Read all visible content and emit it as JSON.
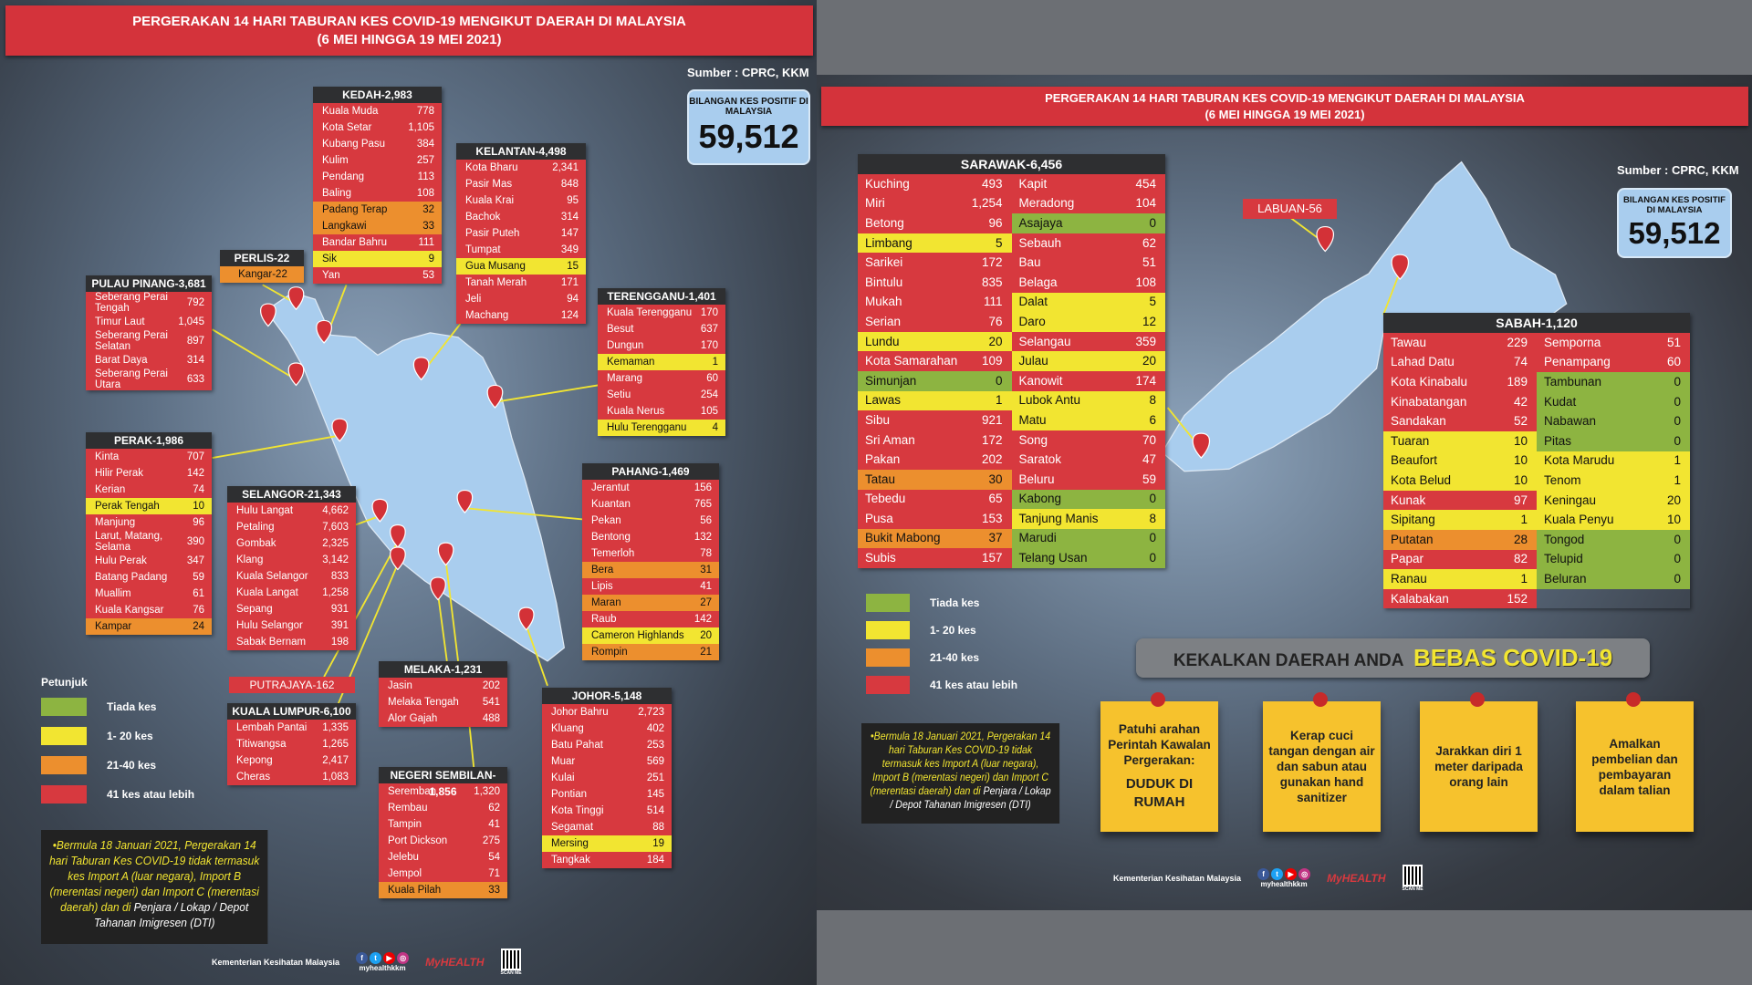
{
  "colors": {
    "tiada": "#8db441",
    "low": "#f2e531",
    "mid": "#ec8f2e",
    "high": "#d7393f",
    "header": "#d4333b",
    "map": "#a9cdee"
  },
  "title_line1": "PERGERAKAN 14 HARI TABURAN KES COVID-19 MENGIKUT DAERAH DI MALAYSIA",
  "title_line2": "(6 MEI HINGGA 19 MEI 2021)",
  "source": "Sumber : CPRC, KKM",
  "total_label": "BILANGAN KES POSITIF DI MALAYSIA",
  "total_value": "59,512",
  "legend": {
    "title": "Petunjuk",
    "items": [
      "Tiada kes",
      "1- 20 kes",
      "21-40 kes",
      "41 kes atau lebih"
    ]
  },
  "note": {
    "yellow": "•Bermula 18 Januari 2021, Pergerakan 14 hari Taburan Kes COVID-19 tidak termasuk kes Import A (luar negara), Import B (merentasi negeri) dan Import C (merentasi daerah) dan di",
    "white": "Penjara / Lokap / Depot Tahanan Imigresen (DTI)"
  },
  "footer": {
    "ministry": "Kementerian Kesihatan Malaysia",
    "handle": "myhealthkkm",
    "logo": "MyHEALTH",
    "qr": "SCAN ME"
  },
  "left": {
    "states": [
      {
        "title": "KEDAH-2,983",
        "rows": [
          [
            "Kuala Muda",
            "778"
          ],
          [
            "Kota Setar",
            "1,105"
          ],
          [
            "Kubang Pasu",
            "384"
          ],
          [
            "Kulim",
            "257"
          ],
          [
            "Pendang",
            "113"
          ],
          [
            "Baling",
            "108"
          ],
          [
            "Padang Terap",
            "32"
          ],
          [
            "Langkawi",
            "33"
          ],
          [
            "Bandar Bahru",
            "111"
          ],
          [
            "Sik",
            "9"
          ],
          [
            "Yan",
            "53"
          ]
        ]
      },
      {
        "title": "KELANTAN-4,498",
        "rows": [
          [
            "Kota Bharu",
            "2,341"
          ],
          [
            "Pasir Mas",
            "848"
          ],
          [
            "Kuala Krai",
            "95"
          ],
          [
            "Bachok",
            "314"
          ],
          [
            "Pasir Puteh",
            "147"
          ],
          [
            "Tumpat",
            "349"
          ],
          [
            "Gua Musang",
            "15"
          ],
          [
            "Tanah Merah",
            "171"
          ],
          [
            "Jeli",
            "94"
          ],
          [
            "Machang",
            "124"
          ]
        ]
      },
      {
        "title": "PERLIS-22",
        "rows": [
          [
            "Kangar-22",
            "22"
          ]
        ]
      },
      {
        "title": "PULAU PINANG-3,681",
        "rows": [
          [
            "Seberang Perai Tengah",
            "792"
          ],
          [
            "Timur Laut",
            "1,045"
          ],
          [
            "Seberang Perai Selatan",
            "897"
          ],
          [
            "Barat Daya",
            "314"
          ],
          [
            "Seberang Perai Utara",
            "633"
          ]
        ]
      },
      {
        "title": "TERENGGANU-1,401",
        "rows": [
          [
            "Kuala Terengganu",
            "170"
          ],
          [
            "Besut",
            "637"
          ],
          [
            "Dungun",
            "170"
          ],
          [
            "Kemaman",
            "1"
          ],
          [
            "Marang",
            "60"
          ],
          [
            "Setiu",
            "254"
          ],
          [
            "Kuala Nerus",
            "105"
          ],
          [
            "Hulu Terengganu",
            "4"
          ]
        ]
      },
      {
        "title": "PERAK-1,986",
        "rows": [
          [
            "Kinta",
            "707"
          ],
          [
            "Hilir Perak",
            "142"
          ],
          [
            "Kerian",
            "74"
          ],
          [
            "Perak Tengah",
            "10"
          ],
          [
            "Manjung",
            "96"
          ],
          [
            "Larut, Matang, Selama",
            "390"
          ],
          [
            "Hulu Perak",
            "347"
          ],
          [
            "Batang Padang",
            "59"
          ],
          [
            "Muallim",
            "61"
          ],
          [
            "Kuala Kangsar",
            "76"
          ],
          [
            "Kampar",
            "24"
          ]
        ]
      },
      {
        "title": "SELANGOR-21,343",
        "rows": [
          [
            "Hulu Langat",
            "4,662"
          ],
          [
            "Petaling",
            "7,603"
          ],
          [
            "Gombak",
            "2,325"
          ],
          [
            "Klang",
            "3,142"
          ],
          [
            "Kuala Selangor",
            "833"
          ],
          [
            "Kuala Langat",
            "1,258"
          ],
          [
            "Sepang",
            "931"
          ],
          [
            "Hulu Selangor",
            "391"
          ],
          [
            "Sabak Bernam",
            "198"
          ]
        ]
      },
      {
        "title": "PAHANG-1,469",
        "rows": [
          [
            "Jerantut",
            "156"
          ],
          [
            "Kuantan",
            "765"
          ],
          [
            "Pekan",
            "56"
          ],
          [
            "Bentong",
            "132"
          ],
          [
            "Temerloh",
            "78"
          ],
          [
            "Bera",
            "31"
          ],
          [
            "Lipis",
            "41"
          ],
          [
            "Maran",
            "27"
          ],
          [
            "Raub",
            "142"
          ],
          [
            "Cameron Highlands",
            "20"
          ],
          [
            "Rompin",
            "21"
          ]
        ]
      },
      {
        "title": "KUALA LUMPUR-6,100",
        "rows": [
          [
            "Lembah Pantai",
            "1,335"
          ],
          [
            "Titiwangsa",
            "1,265"
          ],
          [
            "Kepong",
            "2,417"
          ],
          [
            "Cheras",
            "1,083"
          ]
        ]
      },
      {
        "title": "MELAKA-1,231",
        "rows": [
          [
            "Jasin",
            "202"
          ],
          [
            "Melaka Tengah",
            "541"
          ],
          [
            "Alor Gajah",
            "488"
          ]
        ]
      },
      {
        "title": "NEGERI SEMBILAN-1,856",
        "rows": [
          [
            "Seremban",
            "1,320"
          ],
          [
            "Rembau",
            "62"
          ],
          [
            "Tampin",
            "41"
          ],
          [
            "Port Dickson",
            "275"
          ],
          [
            "Jelebu",
            "54"
          ],
          [
            "Jempol",
            "71"
          ],
          [
            "Kuala Pilah",
            "33"
          ]
        ]
      },
      {
        "title": "JOHOR-5,148",
        "rows": [
          [
            "Johor Bahru",
            "2,723"
          ],
          [
            "Kluang",
            "402"
          ],
          [
            "Batu Pahat",
            "253"
          ],
          [
            "Muar",
            "569"
          ],
          [
            "Kulai",
            "251"
          ],
          [
            "Pontian",
            "145"
          ],
          [
            "Kota Tinggi",
            "514"
          ],
          [
            "Segamat",
            "88"
          ],
          [
            "Mersing",
            "19"
          ],
          [
            "Tangkak",
            "184"
          ]
        ]
      }
    ],
    "putrajaya": "PUTRAJAYA-162"
  },
  "right": {
    "labuan": "LABUAN-56",
    "sarawak": {
      "title": "SARAWAK-6,456",
      "columns": [
        [
          [
            "Kuching",
            "493"
          ],
          [
            "Miri",
            "1,254"
          ],
          [
            "Betong",
            "96"
          ],
          [
            "Limbang",
            "5"
          ],
          [
            "Sarikei",
            "172"
          ],
          [
            "Bintulu",
            "835"
          ],
          [
            "Mukah",
            "111"
          ],
          [
            "Serian",
            "76"
          ],
          [
            "Lundu",
            "20"
          ],
          [
            "Kota Samarahan",
            "109"
          ],
          [
            "Simunjan",
            "0"
          ],
          [
            "Lawas",
            "1"
          ],
          [
            "Sibu",
            "921"
          ],
          [
            "Sri Aman",
            "172"
          ],
          [
            "Pakan",
            "202"
          ],
          [
            "Tatau",
            "30"
          ],
          [
            "Tebedu",
            "65"
          ],
          [
            "Pusa",
            "153"
          ],
          [
            "Bukit Mabong",
            "37"
          ],
          [
            "Subis",
            "157"
          ]
        ],
        [
          [
            "Kapit",
            "454"
          ],
          [
            "Meradong",
            "104"
          ],
          [
            "Asajaya",
            "0"
          ],
          [
            "Sebauh",
            "62"
          ],
          [
            "Bau",
            "51"
          ],
          [
            "Belaga",
            "108"
          ],
          [
            "Dalat",
            "5"
          ],
          [
            "Daro",
            "12"
          ],
          [
            "Selangau",
            "359"
          ],
          [
            "Julau",
            "20"
          ],
          [
            "Kanowit",
            "174"
          ],
          [
            "Lubok Antu",
            "8"
          ],
          [
            "Matu",
            "6"
          ],
          [
            "Song",
            "70"
          ],
          [
            "Saratok",
            "47"
          ],
          [
            "Beluru",
            "59"
          ],
          [
            "Kabong",
            "0"
          ],
          [
            "Tanjung Manis",
            "8"
          ],
          [
            "Marudi",
            "0"
          ],
          [
            "Telang Usan",
            "0"
          ]
        ]
      ]
    },
    "sabah": {
      "title": "SABAH-1,120",
      "columns": [
        [
          [
            "Tawau",
            "229"
          ],
          [
            "Lahad Datu",
            "74"
          ],
          [
            "Kota Kinabalu",
            "189"
          ],
          [
            "Kinabatangan",
            "42"
          ],
          [
            "Sandakan",
            "52"
          ],
          [
            "Tuaran",
            "10"
          ],
          [
            "Beaufort",
            "10"
          ],
          [
            "Kota Belud",
            "10"
          ],
          [
            "Kunak",
            "97"
          ],
          [
            "Sipitang",
            "1"
          ],
          [
            "Putatan",
            "28"
          ],
          [
            "Papar",
            "82"
          ],
          [
            "Ranau",
            "1"
          ],
          [
            "Kalabakan",
            "152"
          ]
        ],
        [
          [
            "Semporna",
            "51"
          ],
          [
            "Penampang",
            "60"
          ],
          [
            "Tambunan",
            "0"
          ],
          [
            "Kudat",
            "0"
          ],
          [
            "Nabawan",
            "0"
          ],
          [
            "Pitas",
            "0"
          ],
          [
            "Kota Marudu",
            "1"
          ],
          [
            "Tenom",
            "1"
          ],
          [
            "Keningau",
            "20"
          ],
          [
            "Kuala Penyu",
            "10"
          ],
          [
            "Tongod",
            "0"
          ],
          [
            "Telupid",
            "0"
          ],
          [
            "Beluran",
            "0"
          ]
        ]
      ]
    },
    "banner": {
      "text": "KEKALKAN DAERAH ANDA",
      "highlight": "BEBAS COVID-19"
    },
    "tips": [
      {
        "text": "Patuhi arahan Perintah Kawalan Pergerakan:",
        "emphasis": "DUDUK DI RUMAH"
      },
      {
        "text": "Kerap cuci tangan dengan air dan sabun atau gunakan hand sanitizer",
        "emphasis": ""
      },
      {
        "text": "Jarakkan diri 1 meter daripada orang lain",
        "emphasis": ""
      },
      {
        "text": "Amalkan pembelian dan pembayaran dalam talian",
        "emphasis": ""
      }
    ]
  }
}
